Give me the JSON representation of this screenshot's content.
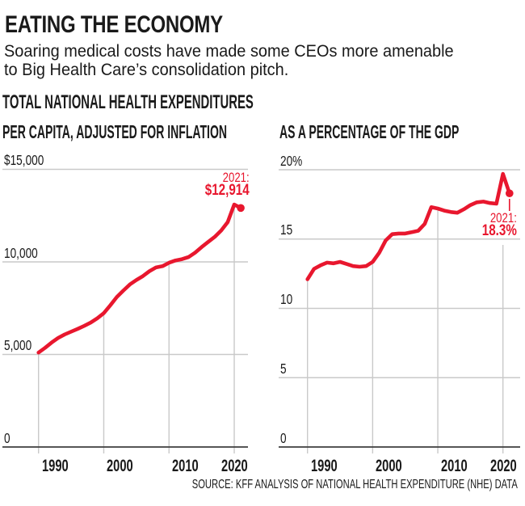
{
  "header": {
    "title": "EATING THE ECONOMY",
    "subtitle_line1": "Soaring medical costs have made some CEOs more amenable",
    "subtitle_line2": "to Big Health Care’s consolidation pitch.",
    "section_title": "TOTAL NATIONAL HEALTH EXPENDITURES"
  },
  "source": "SOURCE: KFF ANALYSIS OF NATIONAL HEALTH EXPENDITURE (NHE) DATA",
  "colors": {
    "accent_red": "#e8172e",
    "grid_gray": "#c9c9c9",
    "axis_dark": "#3e3e3e",
    "text_dark": "#1a1a1a"
  },
  "chart_data": [
    {
      "type": "line",
      "title": "PER CAPITA, ADJUSTED FOR INFLATION",
      "xlim": [
        1990,
        2021
      ],
      "ylim": [
        0,
        15000
      ],
      "grid": true,
      "legend": "none",
      "x": [
        1990,
        1991,
        1992,
        1993,
        1994,
        1995,
        1996,
        1997,
        1998,
        1999,
        2000,
        2001,
        2002,
        2003,
        2004,
        2005,
        2006,
        2007,
        2008,
        2009,
        2010,
        2011,
        2012,
        2013,
        2014,
        2015,
        2016,
        2017,
        2018,
        2019,
        2020,
        2021
      ],
      "values": [
        5100,
        5360,
        5640,
        5890,
        6080,
        6230,
        6380,
        6540,
        6720,
        6950,
        7230,
        7650,
        8100,
        8450,
        8780,
        9020,
        9230,
        9500,
        9700,
        9770,
        9950,
        10080,
        10150,
        10260,
        10500,
        10800,
        11080,
        11350,
        11700,
        12150,
        13100,
        12914
      ],
      "y_ticks": [
        {
          "value": 15000,
          "label": "$15,000"
        },
        {
          "value": 10000,
          "label": "10,000"
        },
        {
          "value": 5000,
          "label": "5,000"
        },
        {
          "value": 0,
          "label": "0"
        }
      ],
      "x_ticks": [
        {
          "value": 1990,
          "label": "1990"
        },
        {
          "value": 2000,
          "label": "2000"
        },
        {
          "value": 2010,
          "label": "2010"
        },
        {
          "value": 2020,
          "label": "2020"
        }
      ],
      "annotation": {
        "line1": "2021:",
        "line2": "$12,914"
      }
    },
    {
      "type": "line",
      "title": "AS A PERCENTAGE OF THE GDP",
      "xlim": [
        1990,
        2021
      ],
      "ylim": [
        0,
        20
      ],
      "grid": true,
      "legend": "none",
      "x": [
        1990,
        1991,
        1992,
        1993,
        1994,
        1995,
        1996,
        1997,
        1998,
        1999,
        2000,
        2001,
        2002,
        2003,
        2004,
        2005,
        2006,
        2007,
        2008,
        2009,
        2010,
        2011,
        2012,
        2013,
        2014,
        2015,
        2016,
        2017,
        2018,
        2019,
        2020,
        2021
      ],
      "values": [
        12.1,
        12.85,
        13.1,
        13.3,
        13.25,
        13.35,
        13.2,
        13.05,
        13.0,
        13.05,
        13.35,
        14.0,
        14.9,
        15.35,
        15.4,
        15.4,
        15.5,
        15.6,
        16.1,
        17.3,
        17.2,
        17.05,
        16.95,
        16.9,
        17.15,
        17.45,
        17.65,
        17.7,
        17.6,
        17.55,
        19.7,
        18.3
      ],
      "y_ticks": [
        {
          "value": 20,
          "label": "20%"
        },
        {
          "value": 15,
          "label": "15"
        },
        {
          "value": 10,
          "label": "10"
        },
        {
          "value": 5,
          "label": "5"
        },
        {
          "value": 0,
          "label": "0"
        }
      ],
      "x_ticks": [
        {
          "value": 1990,
          "label": "1990"
        },
        {
          "value": 2000,
          "label": "2000"
        },
        {
          "value": 2010,
          "label": "2010"
        },
        {
          "value": 2020,
          "label": "2020"
        }
      ],
      "annotation": {
        "line1": "2021:",
        "line2": "18.3%"
      }
    }
  ]
}
